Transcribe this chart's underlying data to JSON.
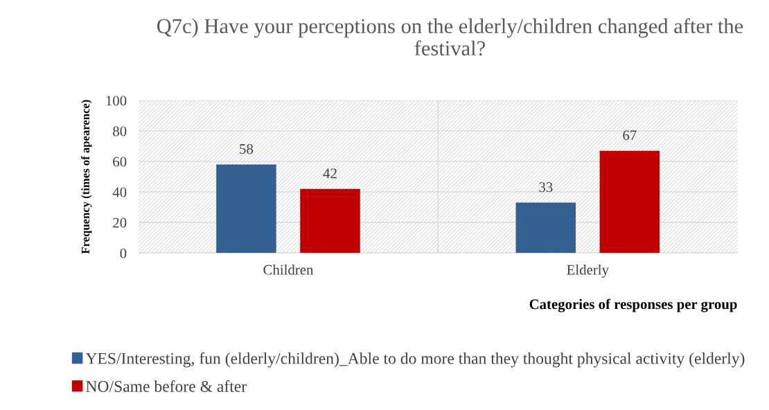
{
  "chart_data": {
    "type": "bar",
    "title": "Q7c) Have your perceptions on the elderly/children changed after the festival?",
    "xlabel": "Categories of responses per group",
    "ylabel": "Frequency (times of apearence)",
    "categories": [
      "Children",
      "Elderly"
    ],
    "series": [
      {
        "name": "YES/Interesting, fun (elderly/children)_Able to do more than they thought physical activity (elderly)",
        "color": "#335f91",
        "values": [
          58,
          33
        ]
      },
      {
        "name": "NO/Same before & after",
        "color": "#c00000",
        "values": [
          42,
          67
        ]
      }
    ],
    "ylim": [
      0,
      100
    ],
    "yticks": [
      0,
      20,
      40,
      60,
      80,
      100
    ],
    "grid": "y",
    "legend": "bottom",
    "data_labels": true
  }
}
